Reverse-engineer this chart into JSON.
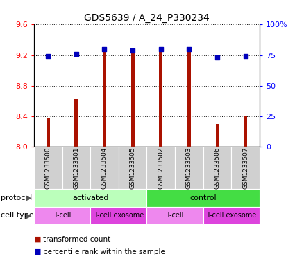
{
  "title": "GDS5639 / A_24_P330234",
  "samples": [
    "GSM1233500",
    "GSM1233501",
    "GSM1233504",
    "GSM1233505",
    "GSM1233502",
    "GSM1233503",
    "GSM1233506",
    "GSM1233507"
  ],
  "transformed_counts": [
    8.37,
    8.63,
    9.28,
    9.3,
    9.28,
    9.28,
    8.3,
    8.4
  ],
  "percentile_ranks": [
    74,
    76,
    80,
    79,
    80,
    80,
    73,
    74
  ],
  "ylim": [
    8.0,
    9.6
  ],
  "yticks_left": [
    8.0,
    8.4,
    8.8,
    9.2,
    9.6
  ],
  "yticks_right": [
    0,
    25,
    50,
    75,
    100
  ],
  "bar_color": "#aa1100",
  "dot_color": "#0000bb",
  "bar_width": 0.12,
  "plot_bg": "#ffffff",
  "sample_row_bg": "#d0d0d0",
  "protocol_groups": [
    {
      "label": "activated",
      "start": 0,
      "end": 4,
      "color": "#bbffbb"
    },
    {
      "label": "control",
      "start": 4,
      "end": 8,
      "color": "#44dd44"
    }
  ],
  "cell_type_groups": [
    {
      "label": "T-cell",
      "start": 0,
      "end": 2,
      "color": "#ee88ee"
    },
    {
      "label": "T-cell exosome",
      "start": 2,
      "end": 4,
      "color": "#dd44dd"
    },
    {
      "label": "T-cell",
      "start": 4,
      "end": 6,
      "color": "#ee88ee"
    },
    {
      "label": "T-cell exosome",
      "start": 6,
      "end": 8,
      "color": "#dd44dd"
    }
  ],
  "legend_items": [
    {
      "label": "transformed count",
      "color": "#aa1100"
    },
    {
      "label": "percentile rank within the sample",
      "color": "#0000bb"
    }
  ]
}
